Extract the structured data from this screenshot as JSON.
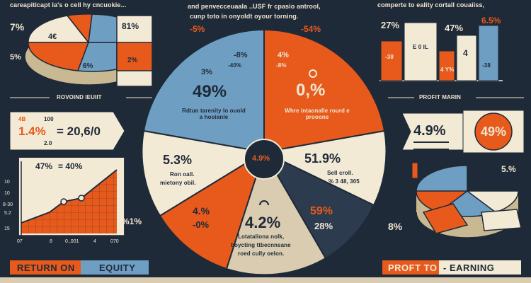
{
  "top_left": {
    "caption": "careapiticapt la's o cell hy cncuokie...",
    "pie_labels": {
      "big_pct": "7%",
      "small_pct": "5%",
      "orange_slice": "4€",
      "blue_slice": "6%",
      "cream_slice": "81%",
      "orange_small": "2%"
    },
    "section_label": "ROVOIND IEUIIT"
  },
  "top_mid": {
    "caption_line1": "and penvecceuaala ..USF fr cpasio antrool,",
    "caption_line2": "cunp toto in onyoldt oyour torning.",
    "left_pct": "-5%",
    "right_pct": "-54%"
  },
  "top_right": {
    "caption": "comperte to eality cortall couaiiss,",
    "pct_27": "27%",
    "pct_47": "47%",
    "pct_65": "6.5%",
    "bar_labels": [
      "-38",
      "E 0 IL",
      "4",
      "-38",
      "4 Y%"
    ],
    "section_label": "PROFIT MARIN"
  },
  "left_mid": {
    "small_a": "4B",
    "small_b": "100",
    "value_a": "1.4%",
    "value_b": "= 20,6/0",
    "small_c": "2.0"
  },
  "left_chart": {
    "header_a": "47%",
    "header_b": "= 40%",
    "y_ticks": [
      "10",
      "8-30",
      "5.2",
      "10",
      "15"
    ],
    "x_ticks": [
      "07",
      "8",
      "0.,001",
      "4",
      "070"
    ],
    "side_pct": "%1%"
  },
  "center_pie": {
    "center_label": "4.9%",
    "seg_blue_top": {
      "small": "3%",
      "pct": "49%",
      "note": "Rdtun tarenity lo ouold a hooianle"
    },
    "seg_orange_top": {
      "small": "4%",
      "small2": "-8%",
      "pct": "0,%",
      "note": "Whre intaonalle rourd e prooone"
    },
    "seg_top_mid": "-8%",
    "seg_top_mid2": "-40%",
    "seg_cream_left": {
      "pct": "5.3%",
      "note1": "Ron oall.",
      "note2": "mietony obil."
    },
    "seg_cream_right": {
      "pct": "51.9%",
      "note1": "Sell croll.",
      "note2": "% 3 48, 305"
    },
    "seg_orange_bottom": {
      "pct": "4.%",
      "pct2": "-0%"
    },
    "seg_bottom": {
      "pct": "4.2%",
      "note1": "Lotataliona nolk,",
      "note2": "boycting ttbecnnsane",
      "note3": "roed cully oelon."
    },
    "seg_blue_bottom": {
      "pct": "59%",
      "pct2": "28%"
    }
  },
  "right_mid": {
    "pct_small": "4.9%",
    "pct_big": "49%",
    "side_pct": "5.%",
    "left_pct": "8%"
  },
  "buttons": {
    "return_on": "RETURN ON",
    "equity": "EQUITY",
    "profit_to": "PROFT TO",
    "earning": "- EARNING"
  },
  "colors": {
    "navy": "#1f2a38",
    "orange": "#e85a1c",
    "blue": "#6e9ec2",
    "cream": "#f3ead6",
    "tan": "#d9ccb0"
  }
}
